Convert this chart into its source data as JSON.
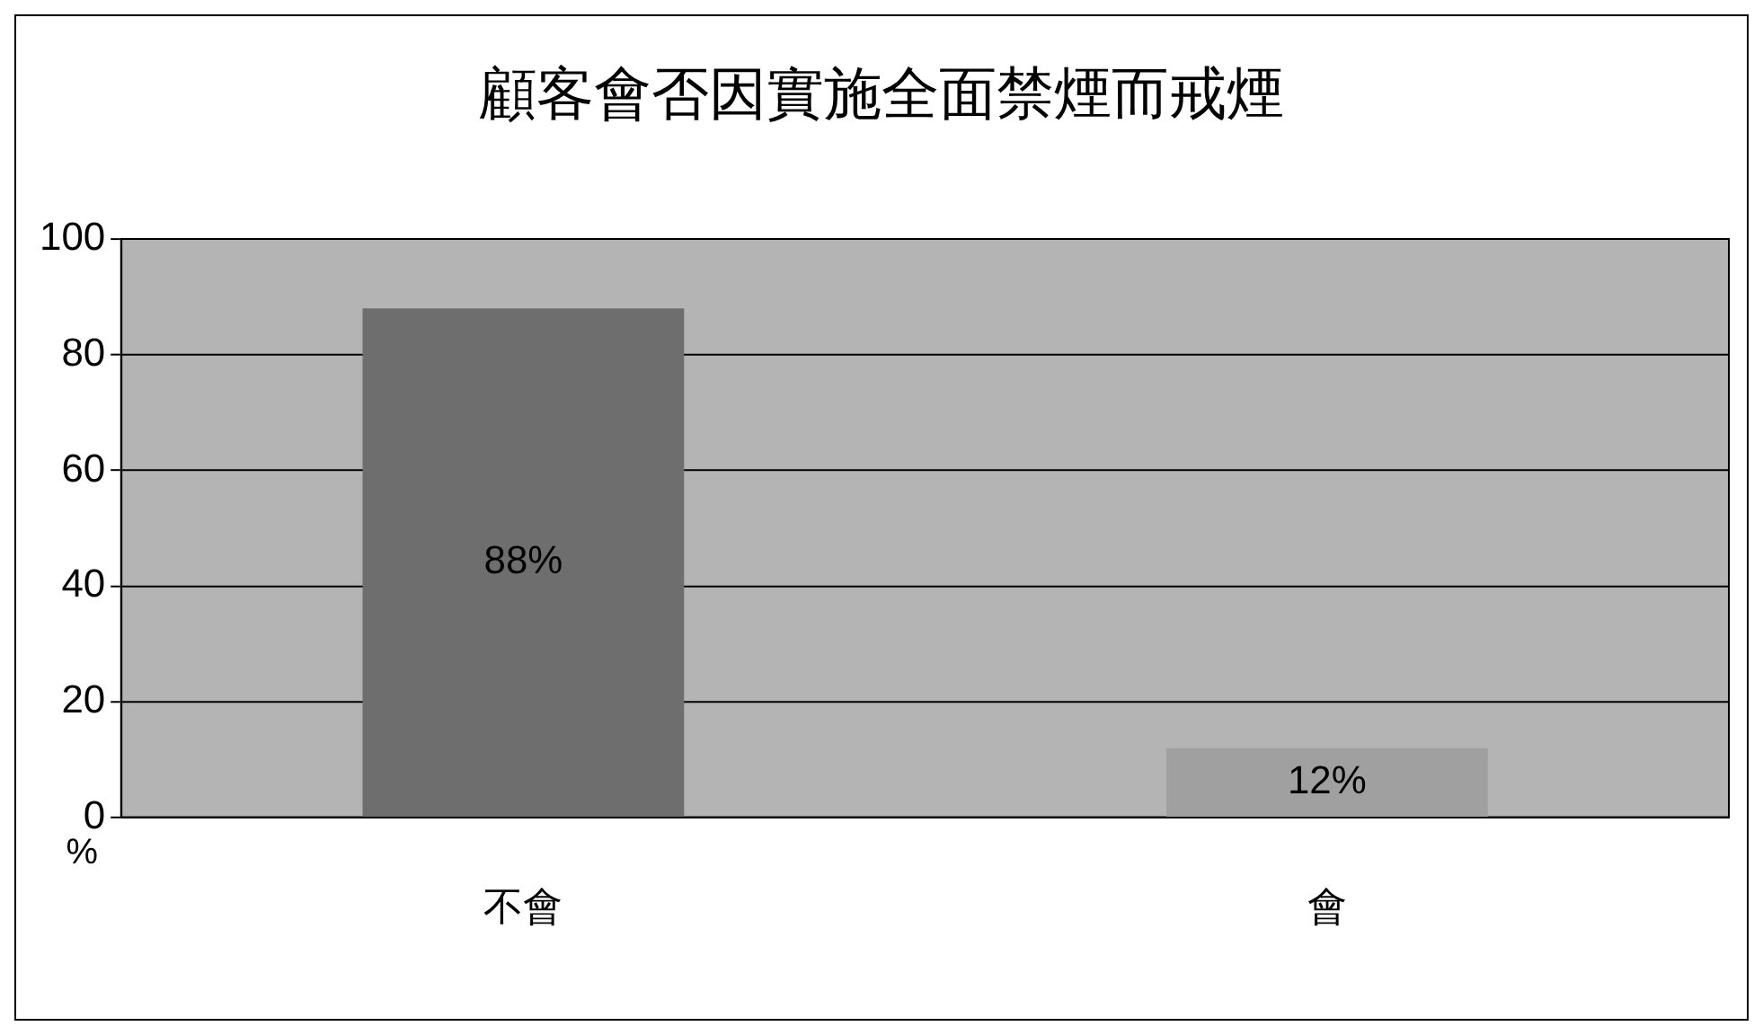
{
  "chart_data": {
    "type": "bar",
    "title": "顧客會否因實施全面禁煙而戒煙",
    "ylabel": "%",
    "categories": [
      "不會",
      "會"
    ],
    "values": [
      88,
      12
    ],
    "colors": [
      "#6e6e6e",
      "#a0a0a0"
    ],
    "value_labels": [
      "88%",
      "12%"
    ],
    "ylim": [
      0,
      100
    ],
    "yticks": [
      0,
      20,
      40,
      60,
      80,
      100
    ],
    "grid": "y",
    "legend": false
  }
}
